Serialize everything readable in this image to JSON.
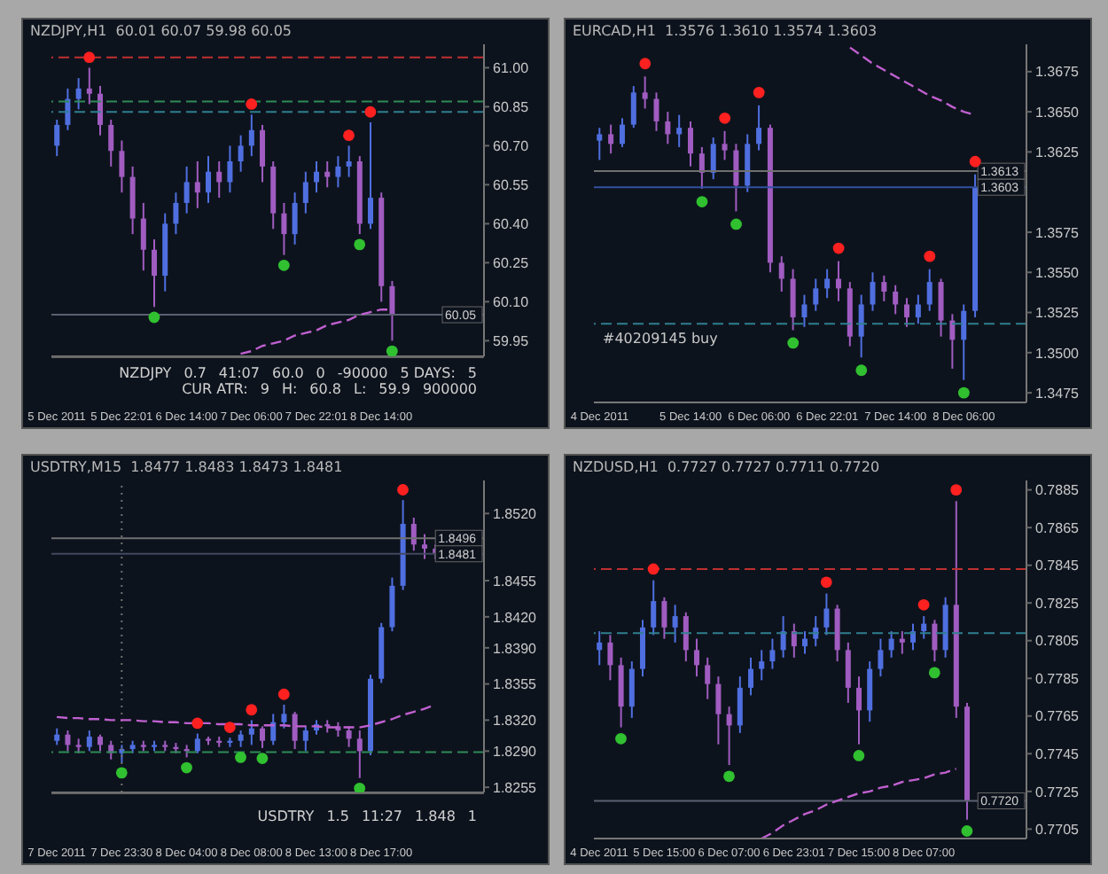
{
  "chart_data": [
    {
      "type": "candlestick",
      "title": "NZDJPY,H1  60.01 60.07 59.98 60.05",
      "categories": [
        "5 Dec 2011",
        null,
        null,
        null,
        null,
        null,
        "5 Dec 22:01",
        null,
        null,
        null,
        null,
        null,
        "6 Dec 14:00",
        null,
        null,
        null,
        null,
        null,
        "7 Dec 06:00",
        null,
        null,
        null,
        null,
        null,
        "7 Dec 22:01",
        null,
        null,
        null,
        null,
        null,
        "8 Dec 14:00",
        null,
        null,
        null,
        null,
        null,
        null,
        null,
        null,
        null
      ],
      "ohlc": [
        [
          60.7,
          60.8,
          60.66,
          60.78
        ],
        [
          60.78,
          60.92,
          60.76,
          60.88
        ],
        [
          60.88,
          60.96,
          60.84,
          60.92
        ],
        [
          60.92,
          61.0,
          60.86,
          60.9
        ],
        [
          60.9,
          60.93,
          60.74,
          60.78
        ],
        [
          60.78,
          60.8,
          60.62,
          60.68
        ],
        [
          60.68,
          60.72,
          60.52,
          60.58
        ],
        [
          60.58,
          60.62,
          60.36,
          60.42
        ],
        [
          60.42,
          60.48,
          60.22,
          60.3
        ],
        [
          60.3,
          60.34,
          60.08,
          60.2
        ],
        [
          60.2,
          60.44,
          60.14,
          60.4
        ],
        [
          60.4,
          60.52,
          60.36,
          60.48
        ],
        [
          60.48,
          60.62,
          60.44,
          60.56
        ],
        [
          60.56,
          60.64,
          60.46,
          60.52
        ],
        [
          60.52,
          60.66,
          60.48,
          60.6
        ],
        [
          60.6,
          60.64,
          60.5,
          60.56
        ],
        [
          60.56,
          60.7,
          60.52,
          60.64
        ],
        [
          60.64,
          60.74,
          60.6,
          60.7
        ],
        [
          60.7,
          60.82,
          60.66,
          60.76
        ],
        [
          60.76,
          60.78,
          60.56,
          60.62
        ],
        [
          60.62,
          60.64,
          60.38,
          60.44
        ],
        [
          60.44,
          60.48,
          60.28,
          60.36
        ],
        [
          60.36,
          60.52,
          60.32,
          60.48
        ],
        [
          60.48,
          60.6,
          60.44,
          60.56
        ],
        [
          60.56,
          60.64,
          60.52,
          60.6
        ],
        [
          60.6,
          60.64,
          60.54,
          60.58
        ],
        [
          60.58,
          60.66,
          60.54,
          60.62
        ],
        [
          60.62,
          60.7,
          60.58,
          60.64
        ],
        [
          60.64,
          60.66,
          60.36,
          60.4
        ],
        [
          60.4,
          60.79,
          60.38,
          60.5
        ],
        [
          60.5,
          60.52,
          60.1,
          60.16
        ],
        [
          60.16,
          60.18,
          59.95,
          60.05
        ],
        null,
        null,
        null,
        null,
        null,
        null,
        null,
        null
      ],
      "series": [
        {
          "type": "scatter",
          "marker": "circle",
          "color": "#ff2020",
          "values": [
            null,
            null,
            null,
            61.04,
            null,
            null,
            null,
            null,
            null,
            null,
            null,
            null,
            null,
            null,
            null,
            null,
            null,
            null,
            60.86,
            null,
            null,
            null,
            null,
            null,
            null,
            null,
            null,
            60.74,
            null,
            60.83,
            null,
            null,
            null,
            null,
            null,
            null,
            null,
            null,
            null,
            null
          ]
        },
        {
          "type": "scatter",
          "marker": "circle",
          "color": "#30c030",
          "values": [
            null,
            null,
            null,
            null,
            null,
            null,
            null,
            null,
            null,
            60.04,
            null,
            null,
            null,
            null,
            null,
            null,
            null,
            null,
            null,
            null,
            null,
            60.24,
            null,
            null,
            null,
            null,
            null,
            null,
            60.32,
            null,
            null,
            59.91,
            null,
            null,
            null,
            null,
            null,
            null,
            null,
            null
          ]
        },
        {
          "type": "line",
          "line_style": "dashed",
          "color": "#c060d0",
          "values": [
            null,
            null,
            null,
            null,
            null,
            null,
            null,
            null,
            null,
            null,
            null,
            null,
            null,
            null,
            null,
            null,
            null,
            59.9,
            59.91,
            59.93,
            59.94,
            59.95,
            59.97,
            59.98,
            59.99,
            60.01,
            60.02,
            60.03,
            60.05,
            60.06,
            60.07,
            60.07,
            null,
            null,
            null,
            null,
            null,
            null,
            null,
            null
          ]
        }
      ],
      "ylim": [
        59.89,
        61.09
      ],
      "yticks": [
        59.95,
        {
          "value": 60.1,
          "label": "60.10"
        },
        60.25,
        {
          "value": 60.4,
          "label": "60.40"
        },
        60.55,
        {
          "value": 60.7,
          "label": "60.70"
        },
        60.85,
        {
          "value": 61,
          "label": "61.00"
        }
      ],
      "ref_lines": [
        {
          "axis": "y",
          "value": 61.04,
          "color": "#c03030",
          "line_style": "dashed"
        },
        {
          "axis": "y",
          "value": 60.87,
          "color": "#2e8b57",
          "line_style": "dashed"
        },
        {
          "axis": "y",
          "value": 60.83,
          "color": "#2f7f8f",
          "line_style": "dashed"
        },
        {
          "axis": "y",
          "value": 60.05,
          "color": "#5a6070",
          "line_style": "solid",
          "label": "60.05"
        }
      ],
      "annotations": [
        "NZDJPY",
        "0.7",
        "41:07",
        "60.0",
        "0",
        "-90000",
        "5 DAYS:",
        "5",
        "CUR ATR:",
        "9",
        "H:",
        "60.8",
        "L:",
        "59.9",
        "900000"
      ]
    },
    {
      "type": "candlestick",
      "title": "EURCAD,H1  1.3576 1.3610 1.3574 1.3603",
      "categories": [
        "4 Dec 2011",
        null,
        null,
        null,
        null,
        null,
        null,
        null,
        "5 Dec 14:00",
        null,
        null,
        null,
        null,
        null,
        "6 Dec 06:00",
        null,
        null,
        null,
        null,
        null,
        "6 Dec 22:01",
        null,
        null,
        null,
        null,
        null,
        "7 Dec 14:00",
        null,
        null,
        null,
        null,
        null,
        "8 Dec 06:00",
        null,
        null,
        null,
        null,
        null
      ],
      "ohlc": [
        [
          1.3632,
          1.364,
          1.362,
          1.3636
        ],
        [
          1.3636,
          1.3642,
          1.3624,
          1.363
        ],
        [
          1.363,
          1.3646,
          1.3628,
          1.3642
        ],
        [
          1.3642,
          1.3666,
          1.364,
          1.3662
        ],
        [
          1.3662,
          1.3672,
          1.3652,
          1.3658
        ],
        [
          1.3658,
          1.3662,
          1.3638,
          1.3644
        ],
        [
          1.3644,
          1.365,
          1.363,
          1.3636
        ],
        [
          1.3636,
          1.3648,
          1.3628,
          1.364
        ],
        [
          1.364,
          1.3644,
          1.3616,
          1.3624
        ],
        [
          1.3624,
          1.3628,
          1.3602,
          1.3612
        ],
        [
          1.3612,
          1.3634,
          1.3608,
          1.363
        ],
        [
          1.363,
          1.3638,
          1.362,
          1.3626
        ],
        [
          1.3626,
          1.363,
          1.3588,
          1.3604
        ],
        [
          1.3604,
          1.3636,
          1.36,
          1.363
        ],
        [
          1.363,
          1.3654,
          1.3626,
          1.364
        ],
        [
          1.364,
          1.3642,
          1.355,
          1.3556
        ],
        [
          1.3556,
          1.356,
          1.3538,
          1.3546
        ],
        [
          1.3546,
          1.3552,
          1.3514,
          1.3522
        ],
        [
          1.3522,
          1.3536,
          1.3516,
          1.353
        ],
        [
          1.353,
          1.3546,
          1.3526,
          1.354
        ],
        [
          1.354,
          1.3552,
          1.3534,
          1.3546
        ],
        [
          1.3546,
          1.3557,
          1.3532,
          1.354
        ],
        [
          1.354,
          1.3544,
          1.3504,
          1.351
        ],
        [
          1.351,
          1.3536,
          1.3497,
          1.353
        ],
        [
          1.353,
          1.355,
          1.3526,
          1.3544
        ],
        [
          1.3544,
          1.3548,
          1.3532,
          1.3538
        ],
        [
          1.3538,
          1.3542,
          1.3524,
          1.353
        ],
        [
          1.353,
          1.3534,
          1.3516,
          1.3522
        ],
        [
          1.3522,
          1.3536,
          1.3518,
          1.353
        ],
        [
          1.353,
          1.3552,
          1.3526,
          1.3544
        ],
        [
          1.3544,
          1.3546,
          1.351,
          1.352
        ],
        [
          1.352,
          1.3524,
          1.349,
          1.3508
        ],
        [
          1.3508,
          1.353,
          1.3483,
          1.3526
        ],
        [
          1.3526,
          1.3611,
          1.3522,
          1.3603
        ],
        null,
        null,
        null,
        null
      ],
      "series": [
        {
          "type": "scatter",
          "marker": "circle",
          "color": "#ff2020",
          "values": [
            null,
            null,
            null,
            null,
            1.368,
            null,
            null,
            null,
            null,
            null,
            null,
            1.3646,
            null,
            null,
            1.3662,
            null,
            null,
            null,
            null,
            null,
            null,
            1.3565,
            null,
            null,
            null,
            null,
            null,
            null,
            null,
            1.356,
            null,
            null,
            null,
            1.3619,
            null,
            null,
            null,
            null
          ]
        },
        {
          "type": "scatter",
          "marker": "circle",
          "color": "#30c030",
          "values": [
            null,
            null,
            null,
            null,
            null,
            null,
            null,
            null,
            null,
            1.3594,
            null,
            null,
            1.358,
            null,
            null,
            null,
            null,
            1.3506,
            null,
            null,
            null,
            null,
            null,
            1.3489,
            null,
            null,
            null,
            null,
            null,
            null,
            null,
            null,
            1.3475,
            null,
            null,
            null,
            null,
            null
          ]
        },
        {
          "type": "line",
          "line_style": "dashed",
          "color": "#c060d0",
          "values": [
            null,
            null,
            null,
            null,
            null,
            null,
            null,
            null,
            null,
            null,
            null,
            null,
            null,
            null,
            null,
            null,
            null,
            null,
            null,
            null,
            null,
            null,
            1.369,
            1.3685,
            1.368,
            1.3676,
            1.3672,
            1.3668,
            1.3664,
            1.366,
            1.3657,
            1.3653,
            1.365,
            1.3648,
            null,
            null,
            null,
            null
          ]
        }
      ],
      "ylim": [
        1.3469,
        1.3692
      ],
      "yticks": [
        1.3475,
        {
          "value": 1.35,
          "label": "1.3500"
        },
        1.3525,
        {
          "value": 1.355,
          "label": "1.3550"
        },
        1.3575,
        1.3625,
        {
          "value": 1.365,
          "label": "1.3650"
        },
        1.3675
      ],
      "ref_lines": [
        {
          "axis": "y",
          "value": 1.3613,
          "color": "#707070",
          "line_style": "solid",
          "label": "1.3613"
        },
        {
          "axis": "y",
          "value": 1.3603,
          "color": "#3050a0",
          "line_style": "solid",
          "label": "1.3603"
        },
        {
          "axis": "y",
          "value": 1.3518,
          "color": "#2f7f8f",
          "line_style": "dashed",
          "label": "#40209145 buy"
        }
      ]
    },
    {
      "type": "candlestick",
      "title": "USDTRY,M15  1.8477 1.8483 1.8473 1.8481",
      "categories": [
        "7 Dec 2011",
        null,
        null,
        null,
        null,
        null,
        "7 Dec 23:30",
        null,
        null,
        null,
        null,
        null,
        "8 Dec 04:00",
        null,
        null,
        null,
        null,
        null,
        "8 Dec 08:00",
        null,
        null,
        null,
        null,
        null,
        "8 Dec 13:00",
        null,
        null,
        null,
        null,
        null,
        "8 Dec 17:00",
        null,
        null,
        null,
        null,
        null,
        null,
        null,
        null,
        null
      ],
      "ohlc": [
        [
          1.83,
          1.8312,
          1.8296,
          1.8306
        ],
        [
          1.8306,
          1.831,
          1.829,
          1.8296
        ],
        [
          1.8296,
          1.8302,
          1.8288,
          1.8294
        ],
        [
          1.8294,
          1.831,
          1.829,
          1.8304
        ],
        [
          1.8304,
          1.8306,
          1.829,
          1.8296
        ],
        [
          1.8296,
          1.83,
          1.8282,
          1.8288
        ],
        [
          1.8288,
          1.8296,
          1.8279,
          1.8292
        ],
        [
          1.8292,
          1.83,
          1.8288,
          1.8296
        ],
        [
          1.8296,
          1.83,
          1.829,
          1.8294
        ],
        [
          1.8294,
          1.83,
          1.829,
          1.8296
        ],
        [
          1.8296,
          1.83,
          1.829,
          1.8294
        ],
        [
          1.8294,
          1.8298,
          1.8288,
          1.8292
        ],
        [
          1.8292,
          1.8296,
          1.8284,
          1.829
        ],
        [
          1.829,
          1.8307,
          1.8288,
          1.8302
        ],
        [
          1.8302,
          1.8304,
          1.8296,
          1.83
        ],
        [
          1.83,
          1.8304,
          1.8294,
          1.8298
        ],
        [
          1.8298,
          1.8303,
          1.8294,
          1.83
        ],
        [
          1.83,
          1.831,
          1.8294,
          1.8306
        ],
        [
          1.8306,
          1.832,
          1.8296,
          1.8312
        ],
        [
          1.8312,
          1.8314,
          1.8293,
          1.83
        ],
        [
          1.83,
          1.8326,
          1.8296,
          1.8318
        ],
        [
          1.8318,
          1.8335,
          1.8312,
          1.8326
        ],
        [
          1.8326,
          1.8328,
          1.8292,
          1.83
        ],
        [
          1.83,
          1.8314,
          1.829,
          1.831
        ],
        [
          1.831,
          1.832,
          1.8306,
          1.8316
        ],
        [
          1.8316,
          1.832,
          1.8308,
          1.8314
        ],
        [
          1.8314,
          1.8318,
          1.8304,
          1.831
        ],
        [
          1.831,
          1.8314,
          1.8294,
          1.8302
        ],
        [
          1.8302,
          1.831,
          1.8264,
          1.829
        ],
        [
          1.829,
          1.8364,
          1.8286,
          1.836
        ],
        [
          1.836,
          1.8414,
          1.8356,
          1.841
        ],
        [
          1.841,
          1.8458,
          1.8406,
          1.845
        ],
        [
          1.845,
          1.8533,
          1.8446,
          1.851
        ],
        [
          1.851,
          1.8516,
          1.8484,
          1.849
        ],
        [
          1.849,
          1.85,
          1.8476,
          1.8486
        ],
        [
          1.8486,
          1.849,
          1.8476,
          1.8481
        ],
        null,
        null,
        null,
        null
      ],
      "series": [
        {
          "type": "scatter",
          "marker": "circle",
          "color": "#ff2020",
          "values": [
            null,
            null,
            null,
            null,
            null,
            null,
            null,
            null,
            null,
            null,
            null,
            null,
            null,
            1.8317,
            null,
            null,
            1.8313,
            null,
            1.833,
            null,
            null,
            1.8345,
            null,
            null,
            null,
            null,
            null,
            null,
            null,
            null,
            null,
            null,
            1.8543,
            null,
            null,
            null,
            null,
            null,
            null,
            null
          ]
        },
        {
          "type": "scatter",
          "marker": "circle",
          "color": "#30c030",
          "values": [
            null,
            null,
            null,
            null,
            null,
            null,
            1.8269,
            null,
            null,
            null,
            null,
            null,
            1.8274,
            null,
            null,
            null,
            null,
            1.8284,
            null,
            1.8283,
            null,
            null,
            null,
            null,
            null,
            null,
            null,
            null,
            1.8254,
            null,
            null,
            null,
            null,
            null,
            null,
            null,
            null,
            null,
            null,
            null
          ]
        },
        {
          "type": "line",
          "line_style": "dashed",
          "color": "#c060d0",
          "values": [
            1.8323,
            1.8322,
            1.8322,
            1.8321,
            1.8321,
            1.832,
            1.832,
            1.832,
            1.8319,
            1.8319,
            1.8318,
            1.8318,
            1.8317,
            1.8317,
            1.8317,
            1.8316,
            1.8316,
            1.8316,
            1.8315,
            1.8315,
            1.8315,
            1.8315,
            1.8314,
            1.8314,
            1.8314,
            1.8313,
            1.8313,
            1.8313,
            1.8313,
            1.8315,
            1.8318,
            1.8321,
            1.8325,
            1.8328,
            1.8331,
            1.8335,
            null,
            null,
            null,
            null
          ]
        }
      ],
      "ylim": [
        1.825,
        1.8552
      ],
      "yticks": [
        1.8255,
        {
          "value": 1.829,
          "label": "1.8290"
        },
        {
          "value": 1.832,
          "label": "1.8320"
        },
        1.8355,
        {
          "value": 1.839,
          "label": "1.8390"
        },
        {
          "value": 1.842,
          "label": "1.8420"
        },
        1.8455,
        {
          "value": 1.852,
          "label": "1.8520"
        }
      ],
      "ref_lines": [
        {
          "axis": "y",
          "value": 1.8496,
          "color": "#707070",
          "line_style": "solid",
          "label": "1.8496"
        },
        {
          "axis": "y",
          "value": 1.8481,
          "color": "#404860",
          "line_style": "solid",
          "label": "1.8481"
        },
        {
          "axis": "y",
          "value": 1.8289,
          "color": "#2e8b57",
          "line_style": "dashed"
        },
        {
          "axis": "x",
          "value": "7 Dec 23:30",
          "color": "#707070",
          "line_style": "dotted"
        }
      ],
      "annotations": [
        "USDTRY",
        "1.5",
        "11:27",
        "1.848",
        "1"
      ]
    },
    {
      "type": "candlestick",
      "title": "NZDUSD,H1  0.7727 0.7727 0.7711 0.7720",
      "categories": [
        "4 Dec 2011",
        null,
        null,
        null,
        null,
        null,
        "5 Dec 15:00",
        null,
        null,
        null,
        null,
        null,
        "6 Dec 07:00",
        null,
        null,
        null,
        null,
        null,
        "6 Dec 23:01",
        null,
        null,
        null,
        null,
        null,
        "7 Dec 15:00",
        null,
        null,
        null,
        null,
        null,
        "8 Dec 07:00",
        null,
        null,
        null,
        null,
        null,
        null,
        null,
        null,
        null
      ],
      "ohlc": [
        [
          0.78,
          0.781,
          0.7792,
          0.7804
        ],
        [
          0.7804,
          0.7808,
          0.7784,
          0.7792
        ],
        [
          0.7792,
          0.7796,
          0.7759,
          0.777
        ],
        [
          0.777,
          0.7794,
          0.7764,
          0.779
        ],
        [
          0.779,
          0.7816,
          0.7786,
          0.7812
        ],
        [
          0.7812,
          0.7837,
          0.7808,
          0.7826
        ],
        [
          0.7826,
          0.7828,
          0.7806,
          0.7812
        ],
        [
          0.7812,
          0.7824,
          0.7804,
          0.7818
        ],
        [
          0.7818,
          0.782,
          0.7794,
          0.78
        ],
        [
          0.78,
          0.7806,
          0.7786,
          0.7792
        ],
        [
          0.7792,
          0.7796,
          0.7774,
          0.7782
        ],
        [
          0.7782,
          0.7786,
          0.775,
          0.7766
        ],
        [
          0.7766,
          0.777,
          0.7739,
          0.776
        ],
        [
          0.776,
          0.7786,
          0.7756,
          0.778
        ],
        [
          0.778,
          0.7796,
          0.7776,
          0.779
        ],
        [
          0.779,
          0.78,
          0.7784,
          0.7794
        ],
        [
          0.7794,
          0.7806,
          0.779,
          0.78
        ],
        [
          0.78,
          0.7818,
          0.7796,
          0.781
        ],
        [
          0.781,
          0.7814,
          0.7796,
          0.7802
        ],
        [
          0.7802,
          0.781,
          0.7798,
          0.7806
        ],
        [
          0.7806,
          0.7818,
          0.7802,
          0.7812
        ],
        [
          0.7812,
          0.783,
          0.7808,
          0.7822
        ],
        [
          0.7822,
          0.7824,
          0.7794,
          0.78
        ],
        [
          0.78,
          0.7804,
          0.7772,
          0.778
        ],
        [
          0.778,
          0.7786,
          0.775,
          0.7768
        ],
        [
          0.7768,
          0.7794,
          0.7762,
          0.779
        ],
        [
          0.779,
          0.7806,
          0.7786,
          0.78
        ],
        [
          0.78,
          0.781,
          0.7796,
          0.7806
        ],
        [
          0.7806,
          0.781,
          0.7798,
          0.7804
        ],
        [
          0.7804,
          0.7814,
          0.78,
          0.781
        ],
        [
          0.781,
          0.7818,
          0.7806,
          0.7814
        ],
        [
          0.7814,
          0.7816,
          0.7794,
          0.78
        ],
        [
          0.78,
          0.7828,
          0.7796,
          0.7824
        ],
        [
          0.7824,
          0.7879,
          0.7764,
          0.777
        ],
        [
          0.777,
          0.7772,
          0.771,
          0.772
        ],
        null,
        null,
        null,
        null,
        null
      ],
      "series": [
        {
          "type": "scatter",
          "marker": "circle",
          "color": "#ff2020",
          "values": [
            null,
            null,
            null,
            null,
            null,
            0.7843,
            null,
            null,
            null,
            null,
            null,
            null,
            null,
            null,
            null,
            null,
            null,
            null,
            null,
            null,
            null,
            0.7836,
            null,
            null,
            null,
            null,
            null,
            null,
            null,
            null,
            0.7824,
            null,
            null,
            0.7885,
            null,
            null,
            null,
            null,
            null,
            null
          ]
        },
        {
          "type": "scatter",
          "marker": "circle",
          "color": "#30c030",
          "values": [
            null,
            null,
            0.7753,
            null,
            null,
            null,
            null,
            null,
            null,
            null,
            null,
            null,
            0.7733,
            null,
            null,
            null,
            null,
            null,
            null,
            null,
            null,
            null,
            null,
            null,
            0.7744,
            null,
            null,
            null,
            null,
            null,
            null,
            0.7788,
            null,
            null,
            0.7704,
            null,
            null,
            null,
            null,
            null
          ]
        },
        {
          "type": "line",
          "line_style": "dashed",
          "color": "#c060d0",
          "values": [
            null,
            null,
            null,
            null,
            null,
            null,
            null,
            null,
            null,
            null,
            null,
            null,
            null,
            null,
            null,
            0.77,
            0.7703,
            0.7707,
            0.771,
            0.7713,
            0.7715,
            0.7718,
            0.772,
            0.7722,
            0.7724,
            0.7725,
            0.7727,
            0.7728,
            0.773,
            0.7731,
            0.7732,
            0.7734,
            0.7735,
            0.7737,
            null,
            null,
            null,
            null,
            null,
            null
          ]
        }
      ],
      "ylim": [
        0.77,
        0.789
      ],
      "yticks": [
        0.7705,
        0.7725,
        0.7745,
        0.7765,
        0.7785,
        0.7805,
        0.7825,
        0.7845,
        0.7865,
        0.7885
      ],
      "ref_lines": [
        {
          "axis": "y",
          "value": 0.7843,
          "color": "#c03030",
          "line_style": "dashed"
        },
        {
          "axis": "y",
          "value": 0.7809,
          "color": "#2f7f8f",
          "line_style": "dashed"
        },
        {
          "axis": "y",
          "value": 0.772,
          "color": "#5a6070",
          "line_style": "solid",
          "label": "0.7720"
        }
      ]
    }
  ]
}
